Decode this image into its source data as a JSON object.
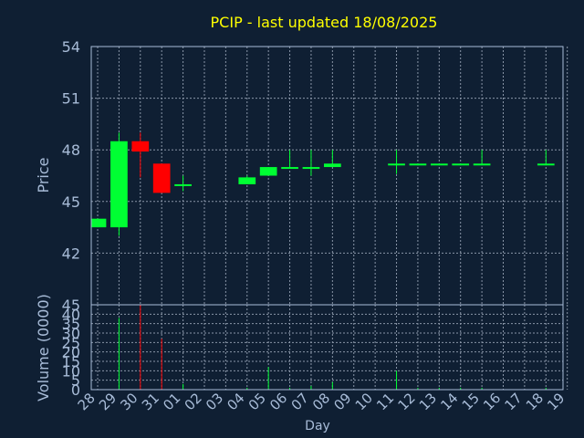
{
  "chart_data": {
    "type": "candlestick",
    "title": "PCIP - last updated 18/08/2025",
    "xlabel": "Day",
    "price_panel": {
      "ylabel": "Price",
      "ylim": [
        39,
        54
      ],
      "yticks": [
        42,
        45,
        48,
        51,
        54
      ],
      "grid": true
    },
    "volume_panel": {
      "ylabel": "Volume (0000)",
      "ylim": [
        0,
        45
      ],
      "yticks": [
        0,
        5,
        10,
        15,
        20,
        25,
        30,
        35,
        40,
        45
      ],
      "grid": true
    },
    "x_ticks": [
      "28",
      "29",
      "30",
      "31",
      "01",
      "02",
      "03",
      "04",
      "05",
      "06",
      "07",
      "08",
      "09",
      "10",
      "11",
      "12",
      "13",
      "14",
      "15",
      "16",
      "17",
      "18",
      "19"
    ],
    "candles": [
      {
        "day": "28",
        "open": 43.5,
        "high": 44.0,
        "low": 43.5,
        "close": 44.0
      },
      {
        "day": "29",
        "open": 43.5,
        "high": 49.0,
        "low": 43.0,
        "close": 48.5
      },
      {
        "day": "30",
        "open": 48.5,
        "high": 49.0,
        "low": 46.4,
        "close": 47.9
      },
      {
        "day": "31",
        "open": 47.2,
        "high": 47.2,
        "low": 45.5,
        "close": 45.5
      },
      {
        "day": "01",
        "open": 45.9,
        "high": 46.5,
        "low": 45.6,
        "close": 46.0
      },
      {
        "day": "04",
        "open": 46.0,
        "high": 46.5,
        "low": 46.0,
        "close": 46.4
      },
      {
        "day": "05",
        "open": 46.5,
        "high": 47.0,
        "low": 46.5,
        "close": 47.0
      },
      {
        "day": "06",
        "open": 46.9,
        "high": 48.0,
        "low": 46.9,
        "close": 47.0
      },
      {
        "day": "07",
        "open": 46.9,
        "high": 48.0,
        "low": 46.5,
        "close": 47.0
      },
      {
        "day": "08",
        "open": 47.0,
        "high": 48.0,
        "low": 47.0,
        "close": 47.2
      },
      {
        "day": "11",
        "open": 47.1,
        "high": 48.0,
        "low": 46.6,
        "close": 47.2
      },
      {
        "day": "12",
        "open": 47.1,
        "high": 47.2,
        "low": 47.1,
        "close": 47.2
      },
      {
        "day": "13",
        "open": 47.1,
        "high": 47.2,
        "low": 47.1,
        "close": 47.2
      },
      {
        "day": "14",
        "open": 47.1,
        "high": 47.2,
        "low": 47.1,
        "close": 47.2
      },
      {
        "day": "15",
        "open": 47.1,
        "high": 48.0,
        "low": 47.1,
        "close": 47.2
      },
      {
        "day": "18",
        "open": 47.1,
        "high": 48.0,
        "low": 47.1,
        "close": 47.2
      }
    ],
    "volume": [
      {
        "day": "28",
        "value": 0,
        "direction": "up"
      },
      {
        "day": "29",
        "value": 38,
        "direction": "up"
      },
      {
        "day": "30",
        "value": 45,
        "direction": "down"
      },
      {
        "day": "31",
        "value": 27,
        "direction": "down"
      },
      {
        "day": "01",
        "value": 3,
        "direction": "up"
      },
      {
        "day": "04",
        "value": 1,
        "direction": "up"
      },
      {
        "day": "05",
        "value": 12,
        "direction": "up"
      },
      {
        "day": "06",
        "value": 1,
        "direction": "up"
      },
      {
        "day": "07",
        "value": 2,
        "direction": "up"
      },
      {
        "day": "08",
        "value": 4,
        "direction": "up"
      },
      {
        "day": "11",
        "value": 10,
        "direction": "up"
      },
      {
        "day": "12",
        "value": 1,
        "direction": "up"
      },
      {
        "day": "13",
        "value": 1,
        "direction": "up"
      },
      {
        "day": "14",
        "value": 1,
        "direction": "up"
      },
      {
        "day": "15",
        "value": 1,
        "direction": "up"
      },
      {
        "day": "18",
        "value": 1,
        "direction": "up"
      }
    ],
    "colors": {
      "background": "#0f1f33",
      "up": "#00ff33",
      "down": "#ff0000",
      "title": "#ffff00",
      "axis_text": "#a8bcd8",
      "grid": "#8a96a8",
      "frame": "#a8bcd8"
    }
  }
}
